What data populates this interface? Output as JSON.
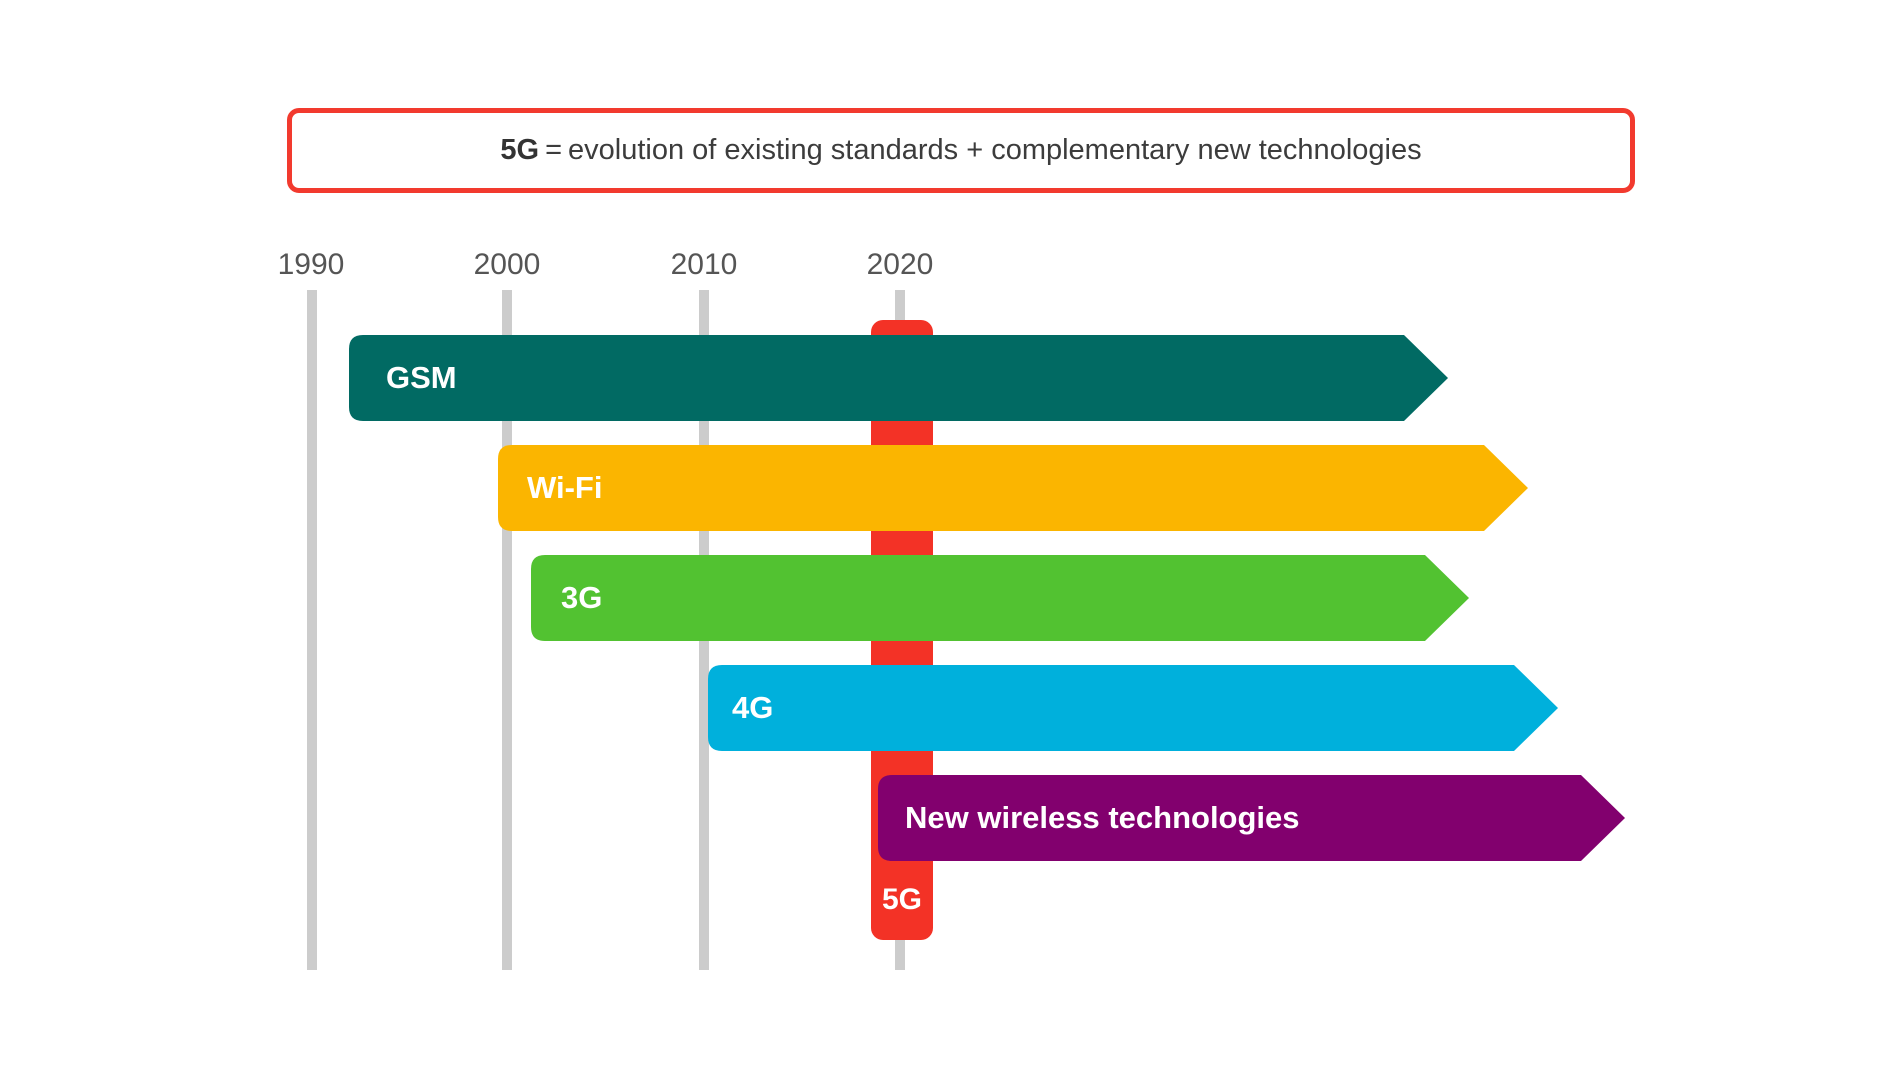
{
  "headline": {
    "bold": "5G",
    "equals": "=",
    "rest": "evolution of existing standards + complementary new technologies"
  },
  "timeline": {
    "years": [
      "1990",
      "2000",
      "2010",
      "2020"
    ]
  },
  "bars": [
    {
      "label": "GSM",
      "color": "#016a63"
    },
    {
      "label": "Wi-Fi",
      "color": "#fbb500"
    },
    {
      "label": "3G",
      "color": "#52c231"
    },
    {
      "label": "4G",
      "color": "#00b0dc"
    },
    {
      "label": "New wireless technologies",
      "color": "#82006e"
    }
  ],
  "marker": {
    "label": "5G",
    "color": "#f33226"
  },
  "colors": {
    "frame": "#f23a2e",
    "gridline": "#cccccc"
  }
}
